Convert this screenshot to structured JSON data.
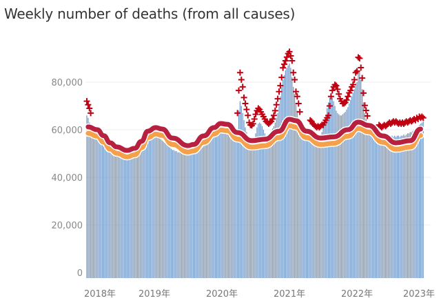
{
  "chart_data": {
    "type": "bar",
    "title": "Weekly number of deaths (from all causes)",
    "xlabel": "",
    "ylabel": "",
    "ylim": [
      0,
      90000
    ],
    "grid": true,
    "legend": "none",
    "y_ticks": [
      {
        "value": 0,
        "label": "0"
      },
      {
        "value": 20000,
        "label": "20,000"
      },
      {
        "value": 40000,
        "label": "40,000"
      },
      {
        "value": 60000,
        "label": "60,000"
      },
      {
        "value": 80000,
        "label": "80,000"
      }
    ],
    "x_ticks": [
      {
        "year": 2018,
        "label": "2018年"
      },
      {
        "year": 2019,
        "label": "2019年"
      },
      {
        "year": 2020,
        "label": "2020年"
      },
      {
        "year": 2021,
        "label": "2021年"
      },
      {
        "year": 2022,
        "label": "2022年"
      },
      {
        "year": 2023,
        "label": "2023年"
      }
    ],
    "colors": {
      "bars": "#6f93bf",
      "upper_line": "#b8203f",
      "expected_line": "#f5a04a",
      "markers": "#c00010",
      "grid": "#ececec"
    },
    "weekly_bars": {
      "2018": [
        66000,
        65000,
        63000,
        61000,
        59500,
        59000,
        58500,
        58000,
        57500,
        57000,
        56000,
        55500,
        55000,
        54000,
        53500,
        53000,
        52500,
        52000,
        51500,
        51000,
        50500,
        50000,
        50000,
        49500,
        49500,
        49000,
        49000,
        48500,
        48500,
        48500,
        48000,
        48000,
        48000,
        48500,
        48500,
        48500,
        49000,
        49000,
        49500,
        50000,
        50500,
        51000,
        51500,
        52000,
        52500,
        53000,
        54000,
        55000,
        55500,
        56000,
        56500,
        57000
      ],
      "2019": [
        57500,
        58000,
        57500,
        57000,
        56500,
        56000,
        55500,
        55000,
        54500,
        54000,
        53500,
        53000,
        52500,
        52000,
        51500,
        51500,
        51000,
        51000,
        50500,
        50500,
        50500,
        50000,
        50000,
        50000,
        50000,
        49500,
        49500,
        49500,
        50000,
        50000,
        50000,
        50500,
        50500,
        51000,
        51000,
        51500,
        52000,
        52500,
        53000,
        53500,
        54000,
        54500,
        55000,
        55500,
        56000,
        56500,
        57000,
        57500,
        58000,
        58500,
        59000,
        59000
      ],
      "2020": [
        59000,
        59500,
        59000,
        58500,
        58000,
        58000,
        57500,
        57000,
        56500,
        56000,
        56000,
        56500,
        60000,
        68000,
        72000,
        70000,
        67000,
        64000,
        61000,
        59000,
        57000,
        56000,
        55000,
        54500,
        55000,
        56500,
        58500,
        61000,
        62500,
        63000,
        62500,
        61500,
        60000,
        58500,
        57500,
        57500,
        58000,
        58500,
        59500,
        60500,
        61500,
        63000,
        65000,
        67000,
        70000,
        74000,
        78000,
        81000,
        83000,
        85000,
        86000,
        87000
      ],
      "2021": [
        87800,
        86000,
        82000,
        78000,
        75000,
        71000,
        68000,
        65000,
        62500,
        61000,
        60000,
        59000,
        58000,
        57500,
        57000,
        56500,
        56500,
        56000,
        56000,
        55500,
        55500,
        55500,
        56000,
        56500,
        57500,
        59000,
        61000,
        63000,
        66000,
        69000,
        71500,
        73500,
        74000,
        73500,
        72000,
        70000,
        68000,
        67000,
        66500,
        66000,
        66000,
        66500,
        67000,
        67500,
        68500,
        69500,
        71000,
        72500,
        74000,
        75500,
        77000,
        78500
      ],
      "2022": [
        80000,
        84000,
        84500,
        81000,
        77000,
        71500,
        67000,
        64500,
        62000,
        60500,
        59500,
        58500,
        58000,
        57500,
        57000,
        57000,
        56500,
        57000,
        57500,
        57500,
        57500,
        57000,
        57500,
        57000,
        57500,
        57500,
        57000,
        57500,
        57000,
        57500,
        57000,
        57500,
        57500,
        57000,
        57500,
        57500,
        58000,
        57500,
        58000,
        58500,
        58500,
        59000,
        59000,
        59500,
        60000,
        60500,
        61000,
        61500,
        62000,
        62500,
        63000,
        63500
      ]
    },
    "upper_line": [
      [
        "2018-W02",
        61200
      ],
      [
        "2018-W09",
        60000
      ],
      [
        "2018-W14",
        57500
      ],
      [
        "2018-W19",
        54500
      ],
      [
        "2018-W24",
        52800
      ],
      [
        "2018-W32",
        51300
      ],
      [
        "2018-W38",
        52200
      ],
      [
        "2018-W43",
        55100
      ],
      [
        "2018-W48",
        59400
      ],
      [
        "2019-W02",
        60900
      ],
      [
        "2019-W07",
        60300
      ],
      [
        "2019-W15",
        56500
      ],
      [
        "2019-W27",
        53300
      ],
      [
        "2019-W31",
        53800
      ],
      [
        "2019-W39",
        57400
      ],
      [
        "2019-W47",
        60900
      ],
      [
        "2019-W52",
        62600
      ],
      [
        "2020-W05",
        62300
      ],
      [
        "2020-W13",
        58800
      ],
      [
        "2020-W24",
        55400
      ],
      [
        "2020-W34",
        56000
      ],
      [
        "2020-W45",
        59400
      ],
      [
        "2021-W01",
        64400
      ],
      [
        "2021-W06",
        63800
      ],
      [
        "2021-W14",
        59400
      ],
      [
        "2021-W25",
        56500
      ],
      [
        "2021-W35",
        57000
      ],
      [
        "2021-W46",
        60000
      ],
      [
        "2022-W02",
        63200
      ],
      [
        "2022-W10",
        61800
      ],
      [
        "2022-W21",
        57400
      ],
      [
        "2022-W31",
        54500
      ],
      [
        "2022-W42",
        55400
      ],
      [
        "2022-W50",
        60300
      ]
    ],
    "expected_line": [
      [
        "2018-W02",
        58500
      ],
      [
        "2018-W09",
        57300
      ],
      [
        "2018-W14",
        54800
      ],
      [
        "2018-W19",
        51800
      ],
      [
        "2018-W24",
        50100
      ],
      [
        "2018-W32",
        48600
      ],
      [
        "2018-W38",
        49500
      ],
      [
        "2018-W43",
        52400
      ],
      [
        "2018-W48",
        56700
      ],
      [
        "2019-W02",
        58200
      ],
      [
        "2019-W07",
        57600
      ],
      [
        "2019-W15",
        53800
      ],
      [
        "2019-W27",
        50600
      ],
      [
        "2019-W31",
        51100
      ],
      [
        "2019-W39",
        54700
      ],
      [
        "2019-W47",
        58200
      ],
      [
        "2019-W52",
        59900
      ],
      [
        "2020-W05",
        59600
      ],
      [
        "2020-W13",
        56100
      ],
      [
        "2020-W24",
        52700
      ],
      [
        "2020-W34",
        53300
      ],
      [
        "2020-W45",
        56700
      ],
      [
        "2021-W01",
        61700
      ],
      [
        "2021-W06",
        61100
      ],
      [
        "2021-W14",
        56700
      ],
      [
        "2021-W25",
        53800
      ],
      [
        "2021-W35",
        54300
      ],
      [
        "2021-W46",
        57300
      ],
      [
        "2022-W02",
        60500
      ],
      [
        "2022-W10",
        59100
      ],
      [
        "2022-W21",
        54700
      ],
      [
        "2022-W31",
        51800
      ],
      [
        "2022-W42",
        52700
      ],
      [
        "2022-W50",
        57600
      ]
    ],
    "excess_markers": [
      {
        "year": 2018,
        "from_week": 1,
        "values": [
          72000,
          70500,
          69000,
          67000
        ]
      },
      {
        "year": 2020,
        "from_week": 13,
        "values": [
          67000,
          76500,
          84000,
          81000,
          78000,
          73500,
          71000,
          68500,
          66000,
          63000,
          62000,
          61800,
          62500,
          64500,
          66500,
          68000,
          69000,
          68500,
          67500,
          66500,
          65500,
          64500,
          63500,
          63000,
          62500,
          63000,
          63500,
          64500,
          66000,
          68000,
          70500,
          73000,
          76000,
          78500,
          82000,
          86000,
          87500,
          89000,
          90500,
          92000
        ]
      },
      {
        "year": 2021,
        "from_week": 1,
        "values": [
          92800,
          91000,
          89000,
          84000,
          81000,
          76000,
          74000,
          71000,
          67500
        ]
      },
      {
        "year": 2021,
        "from_week": 17,
        "values": [
          64000,
          63500,
          62500,
          62000,
          61500,
          61000,
          61500,
          61000,
          61500,
          62000,
          62000,
          63000,
          64000,
          65000,
          66000,
          70000,
          74000,
          76500,
          78000,
          78900,
          78500,
          77000,
          75000,
          73000,
          72000,
          71000,
          71000,
          71500,
          72500,
          74000,
          75500,
          76500,
          78000,
          79000,
          81000,
          84000
        ]
      },
      {
        "year": 2022,
        "from_week": 1,
        "values": [
          84600,
          90400,
          90000,
          86100,
          81700,
          75400,
          70200,
          68100,
          65800
        ]
      },
      {
        "year": 2022,
        "from_week": 18,
        "values": [
          62000,
          61500,
          61000,
          61500,
          62000,
          61500,
          62000,
          62500,
          63000,
          62500,
          63000,
          63500,
          63000,
          63500,
          63000,
          62500,
          63000,
          62500,
          63000,
          62500,
          63000,
          63500,
          63000,
          63500,
          64000,
          63500,
          64000,
          64500,
          64000,
          65000,
          64500,
          65500,
          65000,
          65500,
          65000
        ]
      }
    ]
  }
}
